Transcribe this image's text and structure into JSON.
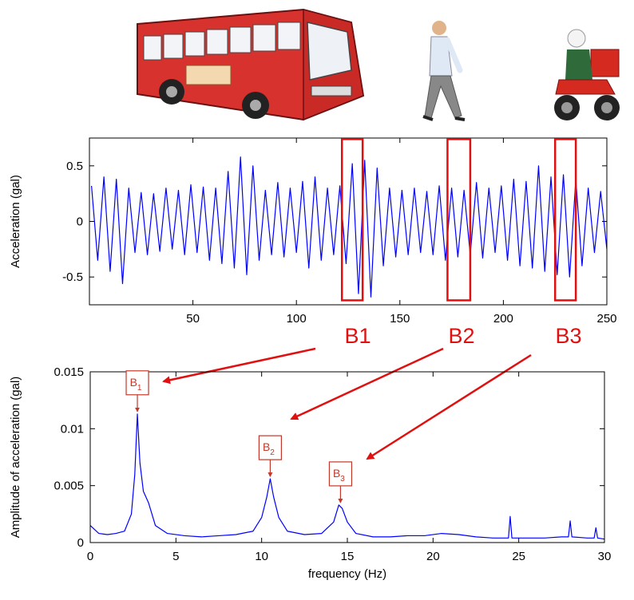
{
  "chart_data": [
    {
      "type": "line",
      "ylabel": "Acceleration (gal)",
      "xlim": [
        0,
        250
      ],
      "xticks": [
        50,
        100,
        150,
        200,
        250
      ],
      "ylim": [
        -0.75,
        0.75
      ],
      "yticks": [
        0.5,
        0,
        -0.5
      ],
      "series": [
        {
          "color": "#0000ff",
          "x": [
            1,
            4,
            7,
            10,
            13,
            16,
            19,
            22,
            25,
            28,
            31,
            34,
            37,
            40,
            43,
            46,
            49,
            52,
            55,
            58,
            61,
            64,
            67,
            70,
            73,
            76,
            79,
            82,
            85,
            88,
            91,
            94,
            97,
            100,
            103,
            106,
            109,
            112,
            115,
            118,
            121,
            124,
            127,
            130,
            133,
            136,
            139,
            142,
            145,
            148,
            151,
            154,
            157,
            160,
            163,
            166,
            169,
            172,
            175,
            178,
            181,
            184,
            187,
            190,
            193,
            196,
            199,
            202,
            205,
            208,
            211,
            214,
            217,
            220,
            223,
            226,
            229,
            232,
            235,
            238,
            241,
            244,
            247,
            250
          ],
          "values": [
            0.32,
            -0.35,
            0.4,
            -0.45,
            0.38,
            -0.56,
            0.3,
            -0.28,
            0.26,
            -0.3,
            0.25,
            -0.27,
            0.3,
            -0.25,
            0.28,
            -0.3,
            0.33,
            -0.28,
            0.31,
            -0.35,
            0.3,
            -0.38,
            0.45,
            -0.42,
            0.58,
            -0.48,
            0.5,
            -0.35,
            0.28,
            -0.3,
            0.35,
            -0.32,
            0.3,
            -0.28,
            0.36,
            -0.42,
            0.4,
            -0.35,
            0.3,
            -0.3,
            0.32,
            -0.38,
            0.52,
            -0.65,
            0.55,
            -0.68,
            0.48,
            -0.4,
            0.3,
            -0.32,
            0.28,
            -0.3,
            0.3,
            -0.28,
            0.27,
            -0.3,
            0.32,
            -0.35,
            0.3,
            -0.32,
            0.28,
            -0.3,
            0.35,
            -0.33,
            0.3,
            -0.28,
            0.32,
            -0.35,
            0.38,
            -0.4,
            0.36,
            -0.42,
            0.5,
            -0.45,
            0.4,
            -0.48,
            0.42,
            -0.5,
            0.38,
            -0.4,
            0.3,
            -0.28,
            0.27,
            -0.25
          ]
        }
      ],
      "highlights": [
        {
          "label": "B1",
          "x": [
            122,
            132
          ],
          "y": [
            -0.71,
            0.74
          ]
        },
        {
          "label": "B2",
          "x": [
            173,
            184
          ],
          "y": [
            -0.71,
            0.74
          ]
        },
        {
          "label": "B3",
          "x": [
            225,
            235
          ],
          "y": [
            -0.71,
            0.74
          ]
        }
      ]
    },
    {
      "type": "line",
      "xlabel": "frequency (Hz)",
      "ylabel": "Amplitude of acceleration (gal)",
      "xlim": [
        0,
        30
      ],
      "xticks": [
        0,
        5,
        10,
        15,
        20,
        25,
        30
      ],
      "ylim": [
        0,
        0.015
      ],
      "yticks": [
        0,
        0.005,
        0.01,
        0.015
      ],
      "series": [
        {
          "color": "#0000ff",
          "x": [
            0,
            0.5,
            1,
            1.5,
            2,
            2.4,
            2.6,
            2.75,
            2.9,
            3.1,
            3.4,
            3.8,
            4.5,
            5.5,
            6.5,
            7.5,
            8.5,
            9.5,
            10,
            10.3,
            10.5,
            10.7,
            11,
            11.5,
            12.5,
            13.5,
            14.2,
            14.5,
            14.7,
            15,
            15.5,
            16.5,
            17.5,
            18.5,
            19.5,
            20.5,
            21.5,
            22.5,
            23.5,
            24.4,
            24.5,
            24.6,
            25.5,
            26.5,
            27.5,
            27.9,
            28,
            28.1,
            29,
            29.4,
            29.5,
            29.6,
            30
          ],
          "values": [
            0.0015,
            0.0008,
            0.0007,
            0.0008,
            0.001,
            0.0025,
            0.006,
            0.0113,
            0.007,
            0.0045,
            0.0035,
            0.0015,
            0.0008,
            0.0006,
            0.0005,
            0.0006,
            0.0007,
            0.001,
            0.0022,
            0.004,
            0.0056,
            0.004,
            0.0022,
            0.001,
            0.0007,
            0.0008,
            0.0018,
            0.0033,
            0.003,
            0.0018,
            0.0008,
            0.0005,
            0.0005,
            0.0006,
            0.0006,
            0.0008,
            0.0007,
            0.0005,
            0.0004,
            0.0004,
            0.0023,
            0.0004,
            0.0004,
            0.0004,
            0.0005,
            0.0005,
            0.0019,
            0.0005,
            0.0004,
            0.0004,
            0.0013,
            0.0004,
            0.0003
          ]
        }
      ],
      "annotations": [
        {
          "text": "B",
          "sub": "1",
          "x": 2.75,
          "y": 0.0113
        },
        {
          "text": "B",
          "sub": "2",
          "x": 10.5,
          "y": 0.0056
        },
        {
          "text": "B",
          "sub": "3",
          "x": 14.6,
          "y": 0.0033
        }
      ]
    }
  ]
}
